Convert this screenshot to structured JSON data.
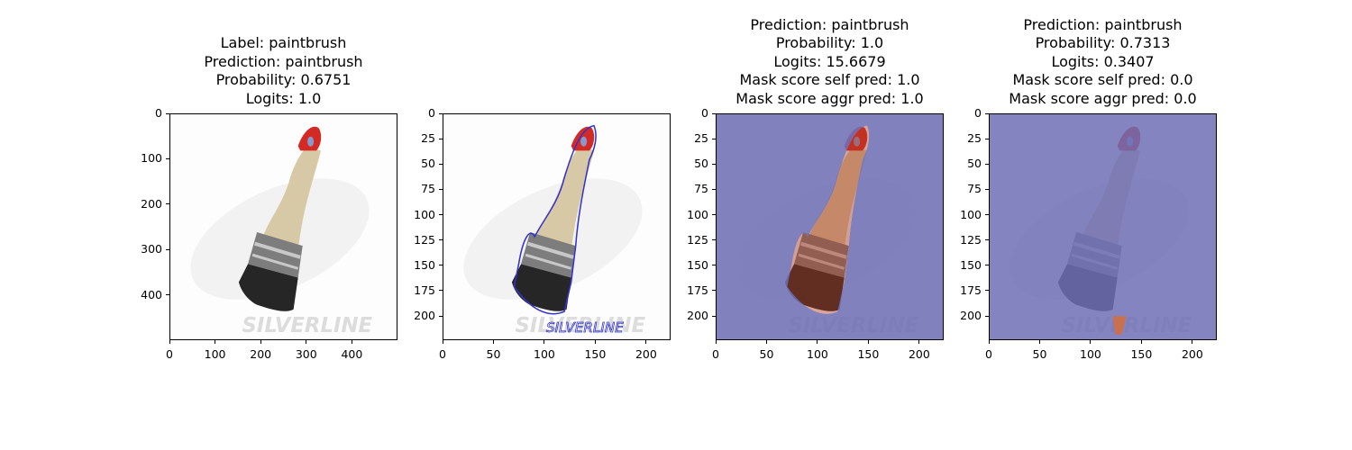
{
  "panels": [
    {
      "title_lines": [
        "Label: paintbrush",
        "Prediction: paintbrush",
        "Probability: 0.6751",
        "Logits: 1.0"
      ],
      "yticks": [
        "0",
        "100",
        "200",
        "300",
        "400"
      ],
      "xticks": [
        "0",
        "100",
        "200",
        "300",
        "400"
      ],
      "axis_max": 500,
      "overlay": "none"
    },
    {
      "title_lines": [],
      "yticks": [
        "0",
        "25",
        "50",
        "75",
        "100",
        "125",
        "150",
        "175",
        "200"
      ],
      "xticks": [
        "0",
        "50",
        "100",
        "150",
        "200"
      ],
      "axis_max": 224,
      "overlay": "contour"
    },
    {
      "title_lines": [
        "Prediction: paintbrush",
        "Probability: 1.0",
        "Logits: 15.6679",
        "Mask score self pred: 1.0",
        "Mask score aggr pred: 1.0"
      ],
      "yticks": [
        "0",
        "25",
        "50",
        "75",
        "100",
        "125",
        "150",
        "175",
        "200"
      ],
      "xticks": [
        "0",
        "50",
        "100",
        "150",
        "200"
      ],
      "axis_max": 224,
      "overlay": "mask-object"
    },
    {
      "title_lines": [
        "Prediction: paintbrush",
        "Probability: 0.7313",
        "Logits: 0.3407",
        "Mask score self pred: 0.0",
        "Mask score aggr pred: 0.0"
      ],
      "yticks": [
        "0",
        "25",
        "50",
        "75",
        "100",
        "125",
        "150",
        "175",
        "200"
      ],
      "xticks": [
        "0",
        "50",
        "100",
        "150",
        "200"
      ],
      "axis_max": 224,
      "overlay": "mask-watermark"
    }
  ],
  "watermark_text": "SILVERLINE",
  "colors": {
    "mask_blue": "#6f6fb5",
    "contour_blue": "#3333cc",
    "brush_tip_red": "#d42a25",
    "handle_wood": "#d8c9a6",
    "ferrule_grey": "#7d7d7d",
    "bristles_black": "#262626"
  }
}
